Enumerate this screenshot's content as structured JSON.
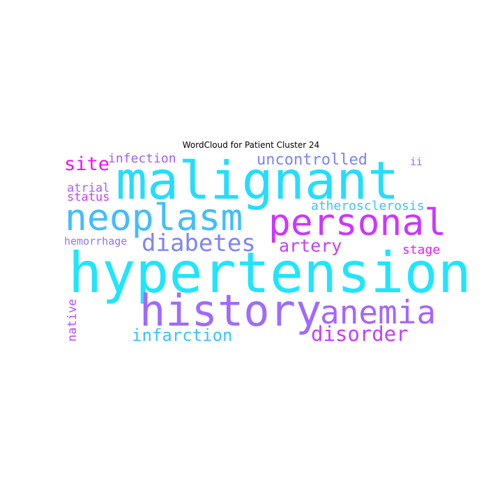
{
  "title": "WordCloud for Patient Cluster 24",
  "cloud": {
    "words": [
      {
        "key": "hypertension",
        "text": "hypertension",
        "color": "#1fe5fe"
      },
      {
        "key": "malignant",
        "text": "malignant",
        "color": "#24ddff"
      },
      {
        "key": "history",
        "text": "history",
        "color": "#9e6bff"
      },
      {
        "key": "neoplasm",
        "text": "neoplasm",
        "color": "#41befe"
      },
      {
        "key": "personal",
        "text": "personal",
        "color": "#cb37ff"
      },
      {
        "key": "anemia",
        "text": "anemia",
        "color": "#a565ff"
      },
      {
        "key": "diabetes",
        "text": "diabetes",
        "color": "#7c84fe"
      },
      {
        "key": "disorder",
        "text": "disorder",
        "color": "#c53dff"
      },
      {
        "key": "infarction",
        "text": "infarction",
        "color": "#3ec1ff"
      },
      {
        "key": "artery",
        "text": "artery",
        "color": "#c43eff"
      },
      {
        "key": "uncontrolled",
        "text": "uncontrolled",
        "color": "#7c83ff"
      },
      {
        "key": "site",
        "text": "site",
        "color": "#f00fff"
      },
      {
        "key": "infection",
        "text": "infection",
        "color": "#a05fff"
      },
      {
        "key": "atherosclerosis",
        "text": "atherosclerosis",
        "color": "#40bfff"
      },
      {
        "key": "atrial",
        "text": "atrial",
        "color": "#a260ff"
      },
      {
        "key": "status",
        "text": "status",
        "color": "#c83aff"
      },
      {
        "key": "hemorrhage",
        "text": "hemorrhage",
        "color": "#8a75ff"
      },
      {
        "key": "stage",
        "text": "stage",
        "color": "#e81dff"
      },
      {
        "key": "ii",
        "text": "ii",
        "color": "#a160ff"
      },
      {
        "key": "native",
        "text": "native",
        "color": "#b54cff"
      }
    ]
  }
}
